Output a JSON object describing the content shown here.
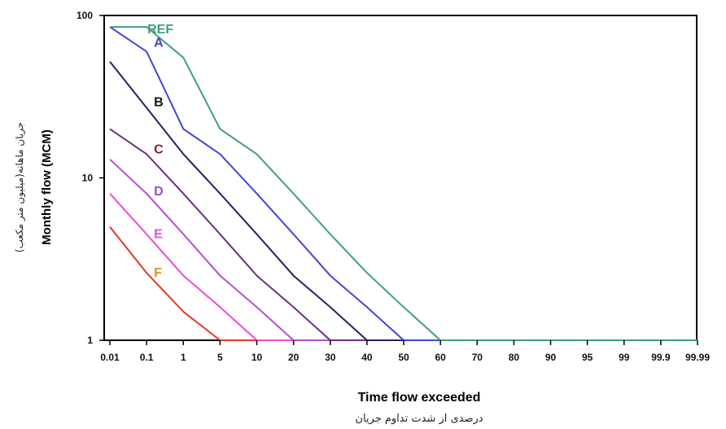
{
  "chart_data": {
    "type": "line",
    "xlabel": "Time flow exceeded",
    "xlabel_secondary": "درصدی از شدت تداوم جریان",
    "ylabel": "Monthly flow (MCM)",
    "ylabel_secondary": "جریان ماهانه(میلیون متر مکعب)",
    "y_scale": "log",
    "ylim": [
      1,
      100
    ],
    "y_ticks": [
      "1",
      "10",
      "100"
    ],
    "x_ticks": [
      "0.01",
      "0.1",
      "1",
      "5",
      "10",
      "20",
      "30",
      "40",
      "50",
      "60",
      "70",
      "80",
      "90",
      "95",
      "99",
      "99.9",
      "99.99"
    ],
    "grid": false,
    "series": [
      {
        "name": "REF",
        "color": "#3f9f80",
        "x": [
          "0.01",
          "0.1",
          "1",
          "5",
          "10",
          "20",
          "30",
          "40",
          "50",
          "60",
          "99.99"
        ],
        "y": [
          85,
          85,
          55,
          20,
          14,
          8,
          4.5,
          2.6,
          1.6,
          1,
          1
        ]
      },
      {
        "name": "A",
        "color": "#4444d6",
        "x": [
          "0.01",
          "0.1",
          "1",
          "5",
          "10",
          "20",
          "30",
          "40",
          "50",
          "99.99"
        ],
        "y": [
          85,
          60,
          20,
          14,
          8,
          4.5,
          2.5,
          1.6,
          1,
          1
        ]
      },
      {
        "name": "B",
        "color": "#23235e",
        "x": [
          "0.01",
          "0.1",
          "1",
          "5",
          "10",
          "20",
          "30",
          "40",
          "99.99"
        ],
        "y": [
          52,
          27,
          14,
          8,
          4.5,
          2.5,
          1.6,
          1,
          1
        ]
      },
      {
        "name": "C",
        "color": "#6b2f7f",
        "x": [
          "0.01",
          "0.1",
          "1",
          "5",
          "10",
          "20",
          "30",
          "99.99"
        ],
        "y": [
          20,
          14,
          8,
          4.5,
          2.5,
          1.6,
          1,
          1
        ]
      },
      {
        "name": "D",
        "color": "#b34fd0",
        "x": [
          "0.01",
          "0.1",
          "1",
          "5",
          "10",
          "20",
          "99.99"
        ],
        "y": [
          13,
          8,
          4.5,
          2.5,
          1.6,
          1,
          1
        ]
      },
      {
        "name": "E",
        "color": "#f04ccf",
        "x": [
          "0.01",
          "0.1",
          "1",
          "5",
          "10",
          "99.99"
        ],
        "y": [
          8,
          4.5,
          2.5,
          1.6,
          1,
          1
        ]
      },
      {
        "name": "F",
        "color": "#e03a2c",
        "x": [
          "0.01",
          "0.1",
          "1",
          "5",
          "99.99"
        ],
        "y": [
          5,
          2.6,
          1.5,
          1,
          1
        ]
      }
    ],
    "label_colors": {
      "REF": "#3f9f80",
      "A": "#4444d6",
      "B": "#111111",
      "C": "#8a1c3b",
      "D": "#9b4fcf",
      "E": "#e056c8",
      "F": "#f08a1a"
    }
  }
}
